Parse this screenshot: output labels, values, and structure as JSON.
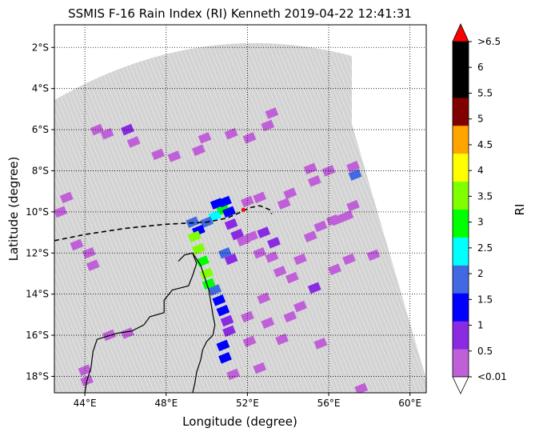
{
  "title": "SSMIS F-16 Rain Index (RI) Kenneth 2019-04-22 12:41:31",
  "axes": {
    "xlabel": "Longitude (degree)",
    "ylabel": "Latitude (degree)",
    "xlim": [
      42.5,
      60.8
    ],
    "ylim": [
      -18.8,
      -0.9
    ],
    "x_ticks": [
      {
        "value": 44,
        "label": "44°E"
      },
      {
        "value": 48,
        "label": "48°E"
      },
      {
        "value": 52,
        "label": "52°E"
      },
      {
        "value": 56,
        "label": "56°E"
      },
      {
        "value": 60,
        "label": "60°E"
      }
    ],
    "y_ticks": [
      {
        "value": -2,
        "label": "2°S"
      },
      {
        "value": -4,
        "label": "4°S"
      },
      {
        "value": -6,
        "label": "6°S"
      },
      {
        "value": -8,
        "label": "8°S"
      },
      {
        "value": -10,
        "label": "10°S"
      },
      {
        "value": -12,
        "label": "12°S"
      },
      {
        "value": -14,
        "label": "14°S"
      },
      {
        "value": -16,
        "label": "16°S"
      },
      {
        "value": -18,
        "label": "18°S"
      }
    ]
  },
  "colorbar": {
    "label": "RI",
    "under_color": "#ffffff",
    "over_color": "#ff0000",
    "bins": [
      {
        "color": "#c060d8"
      },
      {
        "color": "#8a2be2"
      },
      {
        "color": "#0000ff"
      },
      {
        "color": "#4169e1"
      },
      {
        "color": "#00ffff"
      },
      {
        "color": "#00ff00"
      },
      {
        "color": "#7fff00"
      },
      {
        "color": "#ffff00"
      },
      {
        "color": "#ffa500"
      },
      {
        "color": "#800000"
      },
      {
        "color": "#000000"
      },
      {
        "color": "#000000"
      }
    ],
    "tick_labels": [
      "<0.01",
      "0.5",
      "1",
      "1.5",
      "2",
      "2.5",
      "3",
      "3.5",
      "4",
      "4.5",
      "5",
      "5.5",
      "6",
      ">6.5"
    ]
  },
  "colors": {
    "swath": "#d3d3d3",
    "coastline": "#000000",
    "track": "#000000",
    "storm_center": "#ff0000"
  },
  "storm_track": [
    [
      42.5,
      -11.4
    ],
    [
      44,
      -11.1
    ],
    [
      46,
      -10.8
    ],
    [
      48,
      -10.6
    ],
    [
      50,
      -10.5
    ],
    [
      51,
      -10.3
    ],
    [
      51.7,
      -10.0
    ],
    [
      52.1,
      -9.8
    ],
    [
      52.6,
      -9.7
    ],
    [
      53.1,
      -9.9
    ],
    [
      53.2,
      -10.1
    ]
  ],
  "storm_center": [
    51.8,
    -9.9
  ],
  "coastline": [
    [
      48.6,
      -12.4
    ],
    [
      48.9,
      -12.1
    ],
    [
      49.3,
      -12.0
    ],
    [
      49.5,
      -12.5
    ],
    [
      49.3,
      -13.1
    ],
    [
      49.1,
      -13.6
    ],
    [
      48.7,
      -13.7
    ],
    [
      48.3,
      -13.8
    ],
    [
      47.9,
      -14.3
    ],
    [
      47.9,
      -14.9
    ],
    [
      47.2,
      -15.1
    ],
    [
      46.9,
      -15.5
    ],
    [
      46.3,
      -15.8
    ],
    [
      45.6,
      -15.9
    ],
    [
      44.6,
      -16.2
    ],
    [
      44.4,
      -16.8
    ],
    [
      44.3,
      -17.6
    ],
    [
      44.1,
      -18.2
    ],
    [
      44.0,
      -18.8
    ]
  ],
  "coastline_mainland": [
    [
      49.3,
      -12.0
    ],
    [
      49.7,
      -12.6
    ],
    [
      49.9,
      -13.2
    ],
    [
      50.1,
      -13.8
    ],
    [
      50.2,
      -14.4
    ],
    [
      50.3,
      -15.0
    ],
    [
      50.4,
      -15.5
    ],
    [
      50.3,
      -16.0
    ],
    [
      50.0,
      -16.3
    ],
    [
      49.8,
      -16.7
    ],
    [
      49.7,
      -17.2
    ],
    [
      49.5,
      -17.8
    ],
    [
      49.4,
      -18.4
    ],
    [
      49.3,
      -18.8
    ]
  ],
  "rain_cells": [
    [
      50.5,
      -9.6,
      1.3
    ],
    [
      50.8,
      -9.9,
      2.6
    ],
    [
      50.4,
      -10.2,
      2.3
    ],
    [
      50.0,
      -10.5,
      1.6
    ],
    [
      49.6,
      -10.9,
      1.1
    ],
    [
      49.3,
      -10.5,
      1.8
    ],
    [
      49.4,
      -11.2,
      3.2
    ],
    [
      49.6,
      -11.8,
      3.0
    ],
    [
      49.8,
      -12.4,
      2.8
    ],
    [
      50.0,
      -13.0,
      3.3
    ],
    [
      50.1,
      -13.5,
      2.6
    ],
    [
      50.4,
      -13.8,
      1.6
    ],
    [
      50.6,
      -14.3,
      1.2
    ],
    [
      50.8,
      -14.8,
      1.0
    ],
    [
      51.0,
      -15.3,
      0.8
    ],
    [
      51.1,
      -15.8,
      0.6
    ],
    [
      50.9,
      -9.5,
      1.0
    ],
    [
      51.1,
      -10.0,
      1.4
    ],
    [
      51.2,
      -10.6,
      0.9
    ],
    [
      51.5,
      -11.1,
      0.6
    ],
    [
      51.8,
      -11.4,
      0.3
    ],
    [
      52.2,
      -11.2,
      0.2
    ],
    [
      52.6,
      -12.0,
      0.1
    ],
    [
      53.2,
      -12.2,
      0.2
    ],
    [
      53.6,
      -12.9,
      0.3
    ],
    [
      54.2,
      -13.2,
      0.2
    ],
    [
      54.6,
      -12.3,
      0.1
    ],
    [
      55.1,
      -11.2,
      0.4
    ],
    [
      55.6,
      -10.7,
      0.2
    ],
    [
      56.2,
      -10.4,
      0.0
    ],
    [
      55.3,
      -13.7,
      0.9
    ],
    [
      54.6,
      -14.6,
      0.2
    ],
    [
      54.1,
      -15.1,
      0.0
    ],
    [
      53.0,
      -15.4,
      0.1
    ],
    [
      52.0,
      -15.1,
      0.3
    ],
    [
      52.8,
      -14.2,
      0.1
    ],
    [
      56.3,
      -12.8,
      0.2
    ],
    [
      57.0,
      -12.3,
      0.1
    ],
    [
      58.2,
      -12.1,
      0.1
    ],
    [
      57.3,
      -8.2,
      1.6
    ],
    [
      57.2,
      -7.8,
      0.4
    ],
    [
      56.0,
      -8.0,
      0.1
    ],
    [
      55.1,
      -7.9,
      0.2
    ],
    [
      55.3,
      -8.5,
      0.0
    ],
    [
      54.1,
      -9.1,
      0.1
    ],
    [
      53.8,
      -9.6,
      0.3
    ],
    [
      53.0,
      -5.8,
      0.4
    ],
    [
      53.2,
      -5.2,
      0.2
    ],
    [
      52.1,
      -6.4,
      0.1
    ],
    [
      51.2,
      -6.2,
      0.1
    ],
    [
      49.9,
      -6.4,
      0.0
    ],
    [
      49.6,
      -7.0,
      0.1
    ],
    [
      48.4,
      -7.3,
      0.1
    ],
    [
      47.6,
      -7.2,
      0.2
    ],
    [
      46.4,
      -6.6,
      0.2
    ],
    [
      46.1,
      -6.0,
      0.8
    ],
    [
      45.1,
      -6.2,
      0.4
    ],
    [
      44.6,
      -6.0,
      0.2
    ],
    [
      43.1,
      -9.3,
      0.4
    ],
    [
      42.8,
      -10.0,
      0.1
    ],
    [
      43.6,
      -11.6,
      0.3
    ],
    [
      44.2,
      -12.0,
      0.3
    ],
    [
      44.4,
      -12.6,
      0.2
    ],
    [
      44.1,
      -18.2,
      0.4
    ],
    [
      44.0,
      -17.7,
      0.2
    ],
    [
      45.2,
      -16.0,
      0.3
    ],
    [
      46.1,
      -15.9,
      0.2
    ],
    [
      50.9,
      -17.1,
      1.1
    ],
    [
      50.8,
      -16.5,
      1.0
    ],
    [
      52.6,
      -17.6,
      0.3
    ],
    [
      51.3,
      -17.9,
      0.1
    ],
    [
      52.1,
      -16.3,
      0.2
    ],
    [
      53.7,
      -16.2,
      0.3
    ],
    [
      55.6,
      -16.4,
      0.1
    ],
    [
      57.6,
      -18.6,
      0.0
    ],
    [
      56.4,
      -10.4,
      0.4
    ],
    [
      56.9,
      -10.2,
      0.2
    ],
    [
      57.2,
      -9.7,
      0.2
    ],
    [
      50.9,
      -12.0,
      1.5
    ],
    [
      51.2,
      -12.3,
      0.9
    ],
    [
      52.8,
      -11.0,
      0.6
    ],
    [
      53.3,
      -11.5,
      0.5
    ],
    [
      52.0,
      -9.5,
      0.3
    ],
    [
      52.6,
      -9.3,
      0.2
    ]
  ]
}
